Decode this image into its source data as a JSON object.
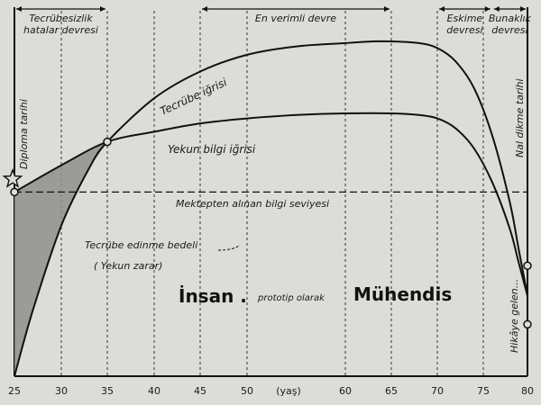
{
  "chart_data": {
    "type": "line",
    "title": "",
    "xlabel": "(yaş)",
    "ylabel": "",
    "xlim": [
      25,
      80
    ],
    "x_ticks": [
      25,
      30,
      35,
      40,
      45,
      50,
      60,
      65,
      70,
      75,
      80
    ],
    "grid": "vertical-dashed",
    "series": [
      {
        "name": "Tecrübe iğrisi",
        "x": [
          25,
          27,
          30,
          33,
          35,
          40,
          45,
          50,
          55,
          60,
          63,
          65,
          68,
          70,
          72,
          74,
          76,
          78,
          79,
          80
        ],
        "y": [
          0.0,
          0.2,
          0.45,
          0.62,
          0.7,
          0.83,
          0.91,
          0.96,
          0.985,
          0.995,
          1.0,
          1.0,
          0.995,
          0.98,
          0.94,
          0.86,
          0.72,
          0.52,
          0.38,
          0.24
        ]
      },
      {
        "name": "Yekun bilgi iğrisi",
        "x": [
          25,
          30,
          35,
          40,
          45,
          50,
          55,
          60,
          65,
          68,
          70,
          72,
          74,
          76,
          78,
          79,
          80
        ],
        "y": [
          0.55,
          0.63,
          0.7,
          0.73,
          0.755,
          0.77,
          0.78,
          0.785,
          0.785,
          0.78,
          0.77,
          0.74,
          0.68,
          0.58,
          0.44,
          0.34,
          0.24
        ]
      },
      {
        "name": "Mektepten alınan bilgi seviyesi",
        "x": [
          25,
          80
        ],
        "y": [
          0.55,
          0.55
        ]
      }
    ],
    "eras": [
      {
        "label_lines": [
          "Tecrübesizlik",
          "hatalar devresi"
        ],
        "from": 25,
        "to": 35
      },
      {
        "label_lines": [
          "En verimli devre"
        ],
        "from": 45,
        "to": 65
      },
      {
        "label_lines": [
          "Eskime",
          "devresi"
        ],
        "from": 70,
        "to": 76
      },
      {
        "label_lines": [
          "Bunaklık",
          "devresi"
        ],
        "from": 76,
        "to": 80
      }
    ],
    "annotations": {
      "diploma": "Diploma tarihi",
      "nal": "Nal dikme tarihi",
      "hikaye": "Hikâye gelen...",
      "bedel": "Tecrübe edinme bedeli",
      "zarar": "( Yekun zarar)",
      "title_left": "İnsan .",
      "title_mid": "prototip olarak",
      "title_right": "Mühendis"
    }
  }
}
